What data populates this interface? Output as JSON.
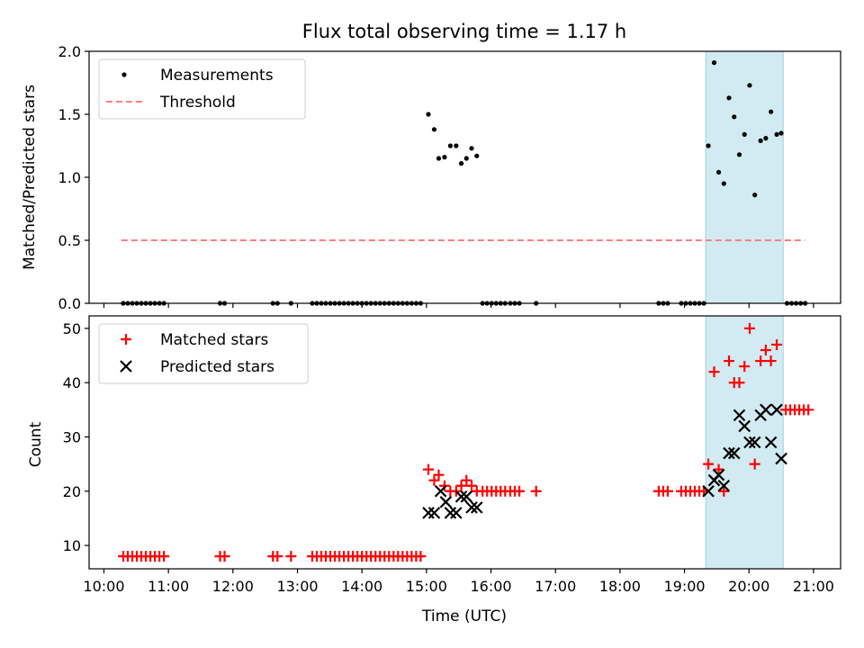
{
  "chart_data": {
    "type": "scatter",
    "title": "Flux total observing time = 1.17 h",
    "xlabel": "Time (UTC)",
    "x_ticks": [
      "10:00",
      "11:00",
      "12:00",
      "13:00",
      "14:00",
      "15:00",
      "16:00",
      "17:00",
      "18:00",
      "19:00",
      "20:00",
      "21:00"
    ],
    "x_tick_values": [
      10,
      11,
      12,
      13,
      14,
      15,
      16,
      17,
      18,
      19,
      20,
      21
    ],
    "xlim": [
      9.77,
      21.42
    ],
    "highlight_span": [
      19.33,
      20.53
    ],
    "panels": [
      {
        "ylabel": "Matched/Predicted stars",
        "ylim": [
          0,
          2.0
        ],
        "yticks": [
          0.0,
          0.5,
          1.0,
          1.5,
          2.0
        ],
        "ytick_labels": [
          "0.0",
          "0.5",
          "1.0",
          "1.5",
          "2.0"
        ],
        "legend": [
          "Measurements",
          "Threshold"
        ],
        "threshold": {
          "name": "Threshold",
          "value": 0.5,
          "x_range": [
            10.27,
            20.87
          ]
        },
        "series": [
          {
            "name": "Measurements",
            "points": [
              [
                10.3,
                0
              ],
              [
                10.37,
                0
              ],
              [
                10.44,
                0
              ],
              [
                10.51,
                0
              ],
              [
                10.58,
                0
              ],
              [
                10.65,
                0
              ],
              [
                10.72,
                0
              ],
              [
                10.79,
                0
              ],
              [
                10.86,
                0
              ],
              [
                10.93,
                0
              ],
              [
                11.8,
                0
              ],
              [
                11.87,
                0
              ],
              [
                12.62,
                0
              ],
              [
                12.69,
                0
              ],
              [
                12.9,
                0
              ],
              [
                13.23,
                0
              ],
              [
                13.3,
                0
              ],
              [
                13.37,
                0
              ],
              [
                13.44,
                0
              ],
              [
                13.51,
                0
              ],
              [
                13.58,
                0
              ],
              [
                13.65,
                0
              ],
              [
                13.72,
                0
              ],
              [
                13.79,
                0
              ],
              [
                13.86,
                0
              ],
              [
                13.93,
                0
              ],
              [
                14.0,
                0
              ],
              [
                14.07,
                0
              ],
              [
                14.14,
                0
              ],
              [
                14.21,
                0
              ],
              [
                14.28,
                0
              ],
              [
                14.35,
                0
              ],
              [
                14.42,
                0
              ],
              [
                14.49,
                0
              ],
              [
                14.56,
                0
              ],
              [
                14.63,
                0
              ],
              [
                14.7,
                0
              ],
              [
                14.77,
                0
              ],
              [
                14.84,
                0
              ],
              [
                14.91,
                0
              ],
              [
                15.03,
                1.5
              ],
              [
                15.12,
                1.38
              ],
              [
                15.19,
                1.15
              ],
              [
                15.28,
                1.16
              ],
              [
                15.37,
                1.25
              ],
              [
                15.46,
                1.25
              ],
              [
                15.54,
                1.11
              ],
              [
                15.62,
                1.15
              ],
              [
                15.7,
                1.23
              ],
              [
                15.78,
                1.17
              ],
              [
                15.87,
                0
              ],
              [
                15.94,
                0
              ],
              [
                16.01,
                0
              ],
              [
                16.08,
                0
              ],
              [
                16.15,
                0
              ],
              [
                16.22,
                0
              ],
              [
                16.3,
                0
              ],
              [
                16.37,
                0
              ],
              [
                16.44,
                0
              ],
              [
                16.7,
                0
              ],
              [
                18.6,
                0
              ],
              [
                18.67,
                0
              ],
              [
                18.74,
                0
              ],
              [
                18.95,
                0
              ],
              [
                19.02,
                0
              ],
              [
                19.09,
                0
              ],
              [
                19.16,
                0
              ],
              [
                19.23,
                0
              ],
              [
                19.3,
                0
              ],
              [
                19.37,
                1.25
              ],
              [
                19.46,
                1.91
              ],
              [
                19.53,
                1.04
              ],
              [
                19.61,
                0.95
              ],
              [
                19.69,
                1.63
              ],
              [
                19.77,
                1.48
              ],
              [
                19.85,
                1.18
              ],
              [
                19.93,
                1.34
              ],
              [
                20.01,
                1.73
              ],
              [
                20.09,
                0.86
              ],
              [
                20.18,
                1.29
              ],
              [
                20.26,
                1.31
              ],
              [
                20.34,
                1.52
              ],
              [
                20.43,
                1.34
              ],
              [
                20.5,
                1.35
              ],
              [
                20.59,
                0
              ],
              [
                20.66,
                0
              ],
              [
                20.73,
                0
              ],
              [
                20.8,
                0
              ],
              [
                20.87,
                0
              ]
            ]
          }
        ]
      },
      {
        "ylabel": "Count",
        "ylim": [
          5.7,
          52.3
        ],
        "yticks": [
          10,
          20,
          30,
          40,
          50
        ],
        "ytick_labels": [
          "10",
          "20",
          "30",
          "40",
          "50"
        ],
        "legend": [
          "Matched stars",
          "Predicted stars"
        ],
        "series": [
          {
            "name": "Matched stars",
            "color": "#ff0000",
            "marker": "plus",
            "points": [
              [
                10.3,
                8
              ],
              [
                10.37,
                8
              ],
              [
                10.44,
                8
              ],
              [
                10.51,
                8
              ],
              [
                10.58,
                8
              ],
              [
                10.65,
                8
              ],
              [
                10.72,
                8
              ],
              [
                10.79,
                8
              ],
              [
                10.86,
                8
              ],
              [
                10.93,
                8
              ],
              [
                11.8,
                8
              ],
              [
                11.87,
                8
              ],
              [
                12.62,
                8
              ],
              [
                12.69,
                8
              ],
              [
                12.9,
                8
              ],
              [
                13.23,
                8
              ],
              [
                13.3,
                8
              ],
              [
                13.37,
                8
              ],
              [
                13.44,
                8
              ],
              [
                13.51,
                8
              ],
              [
                13.58,
                8
              ],
              [
                13.65,
                8
              ],
              [
                13.72,
                8
              ],
              [
                13.79,
                8
              ],
              [
                13.86,
                8
              ],
              [
                13.93,
                8
              ],
              [
                14.0,
                8
              ],
              [
                14.07,
                8
              ],
              [
                14.14,
                8
              ],
              [
                14.21,
                8
              ],
              [
                14.28,
                8
              ],
              [
                14.35,
                8
              ],
              [
                14.42,
                8
              ],
              [
                14.49,
                8
              ],
              [
                14.56,
                8
              ],
              [
                14.63,
                8
              ],
              [
                14.7,
                8
              ],
              [
                14.77,
                8
              ],
              [
                14.84,
                8
              ],
              [
                14.91,
                8
              ],
              [
                15.03,
                24
              ],
              [
                15.12,
                22
              ],
              [
                15.19,
                23
              ],
              [
                15.28,
                21
              ],
              [
                15.37,
                20
              ],
              [
                15.46,
                20
              ],
              [
                15.54,
                21
              ],
              [
                15.62,
                22
              ],
              [
                15.7,
                21
              ],
              [
                15.78,
                20
              ],
              [
                15.87,
                20
              ],
              [
                15.94,
                20
              ],
              [
                16.01,
                20
              ],
              [
                16.08,
                20
              ],
              [
                16.15,
                20
              ],
              [
                16.22,
                20
              ],
              [
                16.3,
                20
              ],
              [
                16.37,
                20
              ],
              [
                16.44,
                20
              ],
              [
                16.7,
                20
              ],
              [
                18.6,
                20
              ],
              [
                18.67,
                20
              ],
              [
                18.74,
                20
              ],
              [
                18.95,
                20
              ],
              [
                19.02,
                20
              ],
              [
                19.09,
                20
              ],
              [
                19.16,
                20
              ],
              [
                19.23,
                20
              ],
              [
                19.3,
                20
              ],
              [
                19.37,
                25
              ],
              [
                19.46,
                42
              ],
              [
                19.53,
                24
              ],
              [
                19.61,
                20
              ],
              [
                19.69,
                44
              ],
              [
                19.77,
                40
              ],
              [
                19.85,
                40
              ],
              [
                19.93,
                43
              ],
              [
                20.01,
                50
              ],
              [
                20.09,
                25
              ],
              [
                20.18,
                44
              ],
              [
                20.26,
                46
              ],
              [
                20.34,
                44
              ],
              [
                20.43,
                47
              ],
              [
                20.57,
                35
              ],
              [
                20.64,
                35
              ],
              [
                20.71,
                35
              ],
              [
                20.78,
                35
              ],
              [
                20.85,
                35
              ],
              [
                20.92,
                35
              ]
            ]
          },
          {
            "name": "Predicted stars",
            "color": "#000000",
            "marker": "x",
            "points": [
              [
                15.03,
                16
              ],
              [
                15.12,
                16
              ],
              [
                15.22,
                20
              ],
              [
                15.3,
                18
              ],
              [
                15.37,
                16
              ],
              [
                15.46,
                16
              ],
              [
                15.54,
                19
              ],
              [
                15.62,
                19
              ],
              [
                15.7,
                17
              ],
              [
                15.78,
                17
              ],
              [
                19.37,
                20
              ],
              [
                19.46,
                22
              ],
              [
                19.53,
                23
              ],
              [
                19.61,
                21
              ],
              [
                19.69,
                27
              ],
              [
                19.77,
                27
              ],
              [
                19.85,
                34
              ],
              [
                19.93,
                32
              ],
              [
                20.01,
                29
              ],
              [
                20.09,
                29
              ],
              [
                20.18,
                34
              ],
              [
                20.26,
                35
              ],
              [
                20.34,
                29
              ],
              [
                20.43,
                35
              ],
              [
                20.5,
                26
              ]
            ]
          }
        ]
      }
    ]
  }
}
